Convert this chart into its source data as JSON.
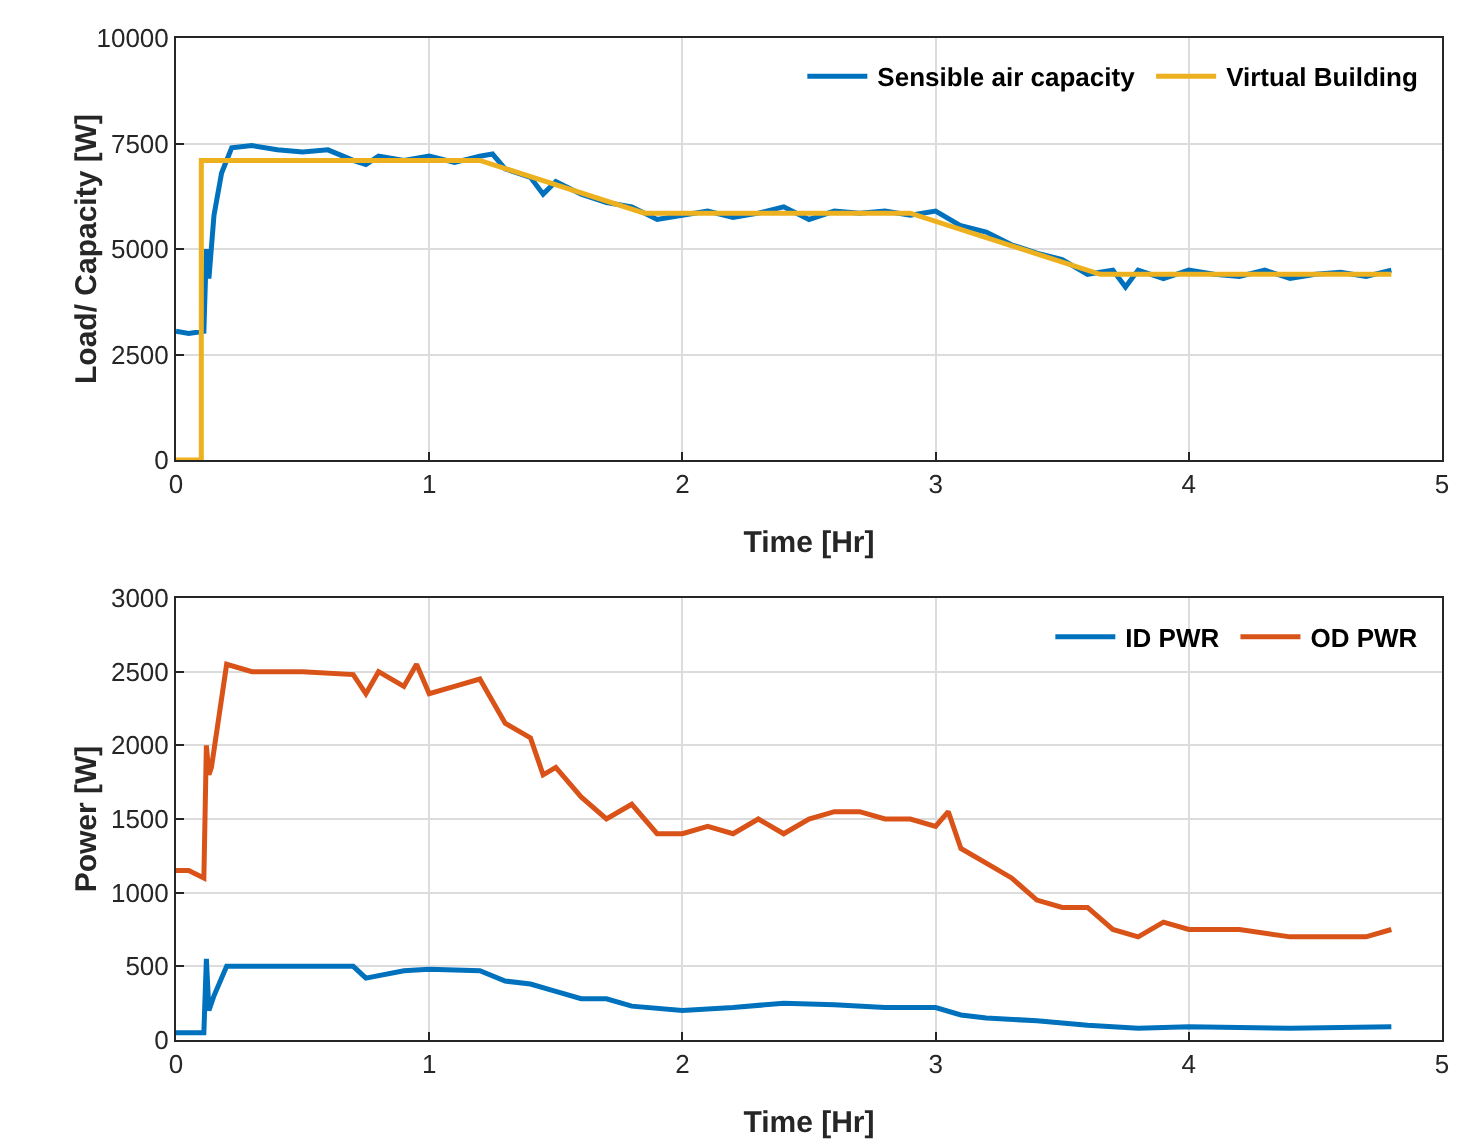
{
  "chart_data": [
    {
      "type": "line",
      "xlabel": "Time [Hr]",
      "ylabel": "Load/ Capacity [W]",
      "xlim": [
        0,
        5
      ],
      "xticks": [
        0,
        1,
        2,
        3,
        4,
        5
      ],
      "ylim": [
        0,
        10000
      ],
      "yticks": [
        0,
        2500,
        5000,
        7500,
        10000
      ],
      "grid": true,
      "legend": "top right",
      "series": [
        {
          "name": "Sensible air capacity",
          "color": "#0072bd",
          "x": [
            0,
            0.05,
            0.11,
            0.12,
            0.13,
            0.15,
            0.18,
            0.22,
            0.3,
            0.4,
            0.5,
            0.6,
            0.7,
            0.75,
            0.8,
            0.9,
            1.0,
            1.1,
            1.2,
            1.25,
            1.3,
            1.4,
            1.45,
            1.5,
            1.6,
            1.7,
            1.8,
            1.9,
            2.0,
            2.1,
            2.2,
            2.3,
            2.4,
            2.5,
            2.6,
            2.7,
            2.8,
            2.9,
            3.0,
            3.1,
            3.2,
            3.3,
            3.4,
            3.5,
            3.6,
            3.7,
            3.75,
            3.8,
            3.9,
            4.0,
            4.1,
            4.2,
            4.3,
            4.4,
            4.5,
            4.6,
            4.7,
            4.8
          ],
          "values": [
            3050,
            3000,
            3050,
            5000,
            4300,
            5800,
            6800,
            7400,
            7450,
            7350,
            7300,
            7350,
            7100,
            7000,
            7200,
            7100,
            7200,
            7050,
            7200,
            7250,
            6900,
            6700,
            6300,
            6600,
            6300,
            6100,
            6000,
            5700,
            5800,
            5900,
            5750,
            5850,
            6000,
            5700,
            5900,
            5850,
            5900,
            5800,
            5900,
            5550,
            5400,
            5100,
            4900,
            4750,
            4400,
            4500,
            4100,
            4500,
            4300,
            4500,
            4400,
            4350,
            4500,
            4300,
            4400,
            4450,
            4350,
            4500
          ]
        },
        {
          "name": "Virtual Building",
          "color": "#edb120",
          "x": [
            0,
            0.1,
            0.1,
            1.2,
            1.85,
            2.9,
            3.65,
            4.8
          ],
          "values": [
            0,
            0,
            7100,
            7100,
            5850,
            5850,
            4400,
            4400
          ]
        }
      ]
    },
    {
      "type": "line",
      "xlabel": "Time [Hr]",
      "ylabel": "Power [W]",
      "xlim": [
        0,
        5
      ],
      "xticks": [
        0,
        1,
        2,
        3,
        4,
        5
      ],
      "ylim": [
        0,
        3000
      ],
      "yticks": [
        0,
        500,
        1000,
        1500,
        2000,
        2500,
        3000
      ],
      "grid": true,
      "legend": "top right",
      "series": [
        {
          "name": "ID PWR",
          "color": "#0072bd",
          "x": [
            0,
            0.11,
            0.12,
            0.13,
            0.15,
            0.2,
            0.5,
            0.7,
            0.75,
            0.9,
            1.0,
            1.2,
            1.3,
            1.4,
            1.5,
            1.6,
            1.7,
            1.8,
            2.0,
            2.2,
            2.4,
            2.6,
            2.8,
            3.0,
            3.1,
            3.2,
            3.4,
            3.6,
            3.8,
            4.0,
            4.4,
            4.8
          ],
          "values": [
            50,
            50,
            550,
            200,
            300,
            500,
            500,
            500,
            420,
            470,
            480,
            470,
            400,
            380,
            330,
            280,
            280,
            230,
            200,
            220,
            250,
            240,
            220,
            220,
            170,
            150,
            130,
            100,
            80,
            90,
            80,
            90
          ]
        },
        {
          "name": "OD PWR",
          "color": "#d95319",
          "x": [
            0,
            0.05,
            0.11,
            0.12,
            0.13,
            0.14,
            0.2,
            0.3,
            0.5,
            0.7,
            0.75,
            0.8,
            0.9,
            0.95,
            1.0,
            1.1,
            1.2,
            1.3,
            1.4,
            1.45,
            1.5,
            1.6,
            1.7,
            1.8,
            1.9,
            2.0,
            2.1,
            2.2,
            2.3,
            2.4,
            2.5,
            2.6,
            2.7,
            2.8,
            2.9,
            3.0,
            3.05,
            3.1,
            3.2,
            3.3,
            3.4,
            3.5,
            3.6,
            3.7,
            3.8,
            3.9,
            4.0,
            4.2,
            4.4,
            4.6,
            4.7,
            4.8
          ],
          "values": [
            1150,
            1150,
            1100,
            2000,
            1800,
            1850,
            2550,
            2500,
            2500,
            2480,
            2350,
            2500,
            2400,
            2550,
            2350,
            2400,
            2450,
            2150,
            2050,
            1800,
            1850,
            1650,
            1500,
            1600,
            1400,
            1400,
            1450,
            1400,
            1500,
            1400,
            1500,
            1550,
            1550,
            1500,
            1500,
            1450,
            1550,
            1300,
            1200,
            1100,
            950,
            900,
            900,
            750,
            700,
            800,
            750,
            750,
            700,
            700,
            700,
            750
          ]
        }
      ]
    }
  ]
}
